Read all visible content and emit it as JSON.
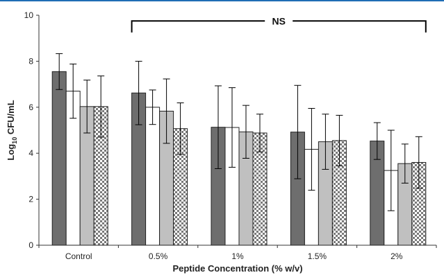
{
  "chart_data": {
    "type": "bar",
    "title": "",
    "xlabel": "Peptide Concentration (% w/v)",
    "ylabel_parts": {
      "prefix": "Log",
      "subscript": "10",
      "suffix": " CFU/mL"
    },
    "ylim": [
      0,
      10
    ],
    "yticks": [
      0,
      2,
      4,
      6,
      8,
      10
    ],
    "categories": [
      "Control",
      "0.5%",
      "1%",
      "1.5%",
      "2%"
    ],
    "series": [
      {
        "fill": "#6e6e6e",
        "pattern": "solid",
        "values": [
          7.55,
          6.62,
          5.13,
          4.92,
          4.53
        ],
        "errors": [
          0.78,
          1.38,
          1.8,
          2.03,
          0.8
        ]
      },
      {
        "fill": "#ffffff",
        "pattern": "solid",
        "values": [
          6.7,
          6.0,
          5.12,
          4.17,
          3.25
        ],
        "errors": [
          1.18,
          0.75,
          1.73,
          1.78,
          1.75
        ]
      },
      {
        "fill": "#c0c0c0",
        "pattern": "solid",
        "values": [
          6.03,
          5.83,
          4.93,
          4.5,
          3.55
        ],
        "errors": [
          1.15,
          1.4,
          1.15,
          1.2,
          0.85
        ]
      },
      {
        "fill": "#ffffff",
        "pattern": "checker",
        "values": [
          6.03,
          5.07,
          4.88,
          4.55,
          3.6
        ],
        "errors": [
          1.33,
          1.12,
          0.82,
          1.1,
          1.12
        ]
      }
    ],
    "annotation": {
      "text": "NS",
      "from_category": "0.5%",
      "to_category": "2%"
    },
    "grid": false,
    "legend": "none"
  },
  "colors": {
    "accent_line": "#1f6db5",
    "axis": "#333333",
    "bar_stroke": "#222222"
  }
}
